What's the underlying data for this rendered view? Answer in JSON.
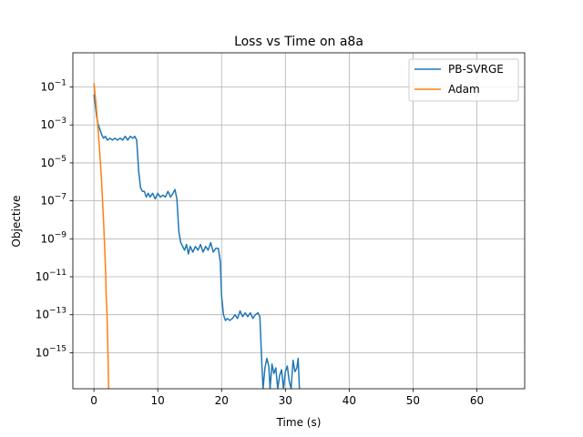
{
  "chart_data": {
    "type": "line",
    "title": "Loss vs Time on a8a",
    "xlabel": "Time (s)",
    "ylabel": "Objective",
    "yscale": "log",
    "xlim": [
      -3.3,
      67.5
    ],
    "ylim_exponent": [
      -16.9,
      0.8
    ],
    "xticks": [
      0,
      10,
      20,
      30,
      40,
      50,
      60
    ],
    "yticks": [
      {
        "exp": -15,
        "label": "10−15"
      },
      {
        "exp": -13,
        "label": "10−13"
      },
      {
        "exp": -11,
        "label": "10−11"
      },
      {
        "exp": -9,
        "label": "10−9"
      },
      {
        "exp": -7,
        "label": "10−7"
      },
      {
        "exp": -5,
        "label": "10−5"
      },
      {
        "exp": -3,
        "label": "10−3"
      },
      {
        "exp": -1,
        "label": "10−1"
      }
    ],
    "grid": true,
    "legend_position": "top-right",
    "series": [
      {
        "name": "PB-SVRGE",
        "color": "#1f77b4",
        "points": [
          [
            0.0,
            -1.4
          ],
          [
            0.2,
            -1.9
          ],
          [
            0.4,
            -2.5
          ],
          [
            0.6,
            -2.9
          ],
          [
            0.8,
            -3.1
          ],
          [
            1.0,
            -3.3
          ],
          [
            1.2,
            -3.5
          ],
          [
            1.5,
            -3.7
          ],
          [
            1.8,
            -3.6
          ],
          [
            2.1,
            -3.8
          ],
          [
            2.5,
            -3.7
          ],
          [
            2.9,
            -3.8
          ],
          [
            3.3,
            -3.7
          ],
          [
            3.7,
            -3.8
          ],
          [
            4.1,
            -3.7
          ],
          [
            4.5,
            -3.8
          ],
          [
            4.9,
            -3.6
          ],
          [
            5.3,
            -3.8
          ],
          [
            5.7,
            -3.6
          ],
          [
            6.1,
            -3.7
          ],
          [
            6.4,
            -3.6
          ],
          [
            6.7,
            -3.8
          ],
          [
            7.0,
            -5.4
          ],
          [
            7.3,
            -6.3
          ],
          [
            7.6,
            -6.5
          ],
          [
            7.9,
            -6.5
          ],
          [
            8.2,
            -6.8
          ],
          [
            8.5,
            -6.6
          ],
          [
            8.8,
            -6.8
          ],
          [
            9.2,
            -6.6
          ],
          [
            9.6,
            -6.9
          ],
          [
            10.0,
            -6.6
          ],
          [
            10.4,
            -6.8
          ],
          [
            10.8,
            -6.7
          ],
          [
            11.2,
            -6.8
          ],
          [
            11.6,
            -6.5
          ],
          [
            12.0,
            -6.8
          ],
          [
            12.4,
            -6.6
          ],
          [
            12.7,
            -6.4
          ],
          [
            13.0,
            -6.9
          ],
          [
            13.3,
            -8.6
          ],
          [
            13.6,
            -9.2
          ],
          [
            13.9,
            -9.4
          ],
          [
            14.2,
            -9.6
          ],
          [
            14.5,
            -9.3
          ],
          [
            14.8,
            -9.8
          ],
          [
            15.1,
            -9.4
          ],
          [
            15.5,
            -9.7
          ],
          [
            15.9,
            -9.4
          ],
          [
            16.3,
            -9.6
          ],
          [
            16.7,
            -9.3
          ],
          [
            17.1,
            -9.7
          ],
          [
            17.5,
            -9.4
          ],
          [
            17.9,
            -9.6
          ],
          [
            18.3,
            -9.2
          ],
          [
            18.7,
            -9.7
          ],
          [
            19.1,
            -9.5
          ],
          [
            19.5,
            -9.5
          ],
          [
            19.8,
            -10.2
          ],
          [
            20.0,
            -12.0
          ],
          [
            20.3,
            -13.0
          ],
          [
            20.6,
            -13.3
          ],
          [
            20.9,
            -13.2
          ],
          [
            21.3,
            -13.3
          ],
          [
            21.7,
            -13.2
          ],
          [
            22.1,
            -13.0
          ],
          [
            22.5,
            -13.2
          ],
          [
            22.9,
            -12.8
          ],
          [
            23.3,
            -13.1
          ],
          [
            23.7,
            -12.9
          ],
          [
            24.1,
            -13.1
          ],
          [
            24.5,
            -12.9
          ],
          [
            24.9,
            -13.2
          ],
          [
            25.3,
            -13.0
          ],
          [
            25.7,
            -12.9
          ],
          [
            26.0,
            -13.1
          ],
          [
            26.3,
            -15.5
          ],
          [
            26.5,
            -16.9
          ],
          [
            26.8,
            -15.8
          ],
          [
            27.1,
            -15.3
          ],
          [
            27.4,
            -15.7
          ],
          [
            27.6,
            -16.9
          ],
          [
            27.9,
            -15.6
          ],
          [
            28.2,
            -16.1
          ],
          [
            28.5,
            -15.8
          ],
          [
            28.8,
            -16.9
          ],
          [
            29.1,
            -16.2
          ],
          [
            29.4,
            -15.9
          ],
          [
            29.7,
            -16.9
          ],
          [
            30.0,
            -16.0
          ],
          [
            30.3,
            -15.7
          ],
          [
            30.6,
            -16.5
          ],
          [
            30.9,
            -16.9
          ],
          [
            31.2,
            -15.4
          ],
          [
            31.5,
            -16.0
          ],
          [
            31.8,
            -15.8
          ],
          [
            32.0,
            -15.3
          ],
          [
            32.2,
            -16.9
          ]
        ]
      },
      {
        "name": "Adam",
        "color": "#ff7f0e",
        "points": [
          [
            0.0,
            -0.8
          ],
          [
            0.3,
            -1.8
          ],
          [
            0.6,
            -3.0
          ],
          [
            0.9,
            -4.4
          ],
          [
            1.2,
            -6.0
          ],
          [
            1.5,
            -8.0
          ],
          [
            1.7,
            -9.6
          ],
          [
            1.85,
            -11.0
          ],
          [
            1.9,
            -11.8
          ],
          [
            2.05,
            -13.0
          ],
          [
            2.2,
            -15.0
          ],
          [
            2.3,
            -16.9
          ]
        ]
      }
    ]
  }
}
